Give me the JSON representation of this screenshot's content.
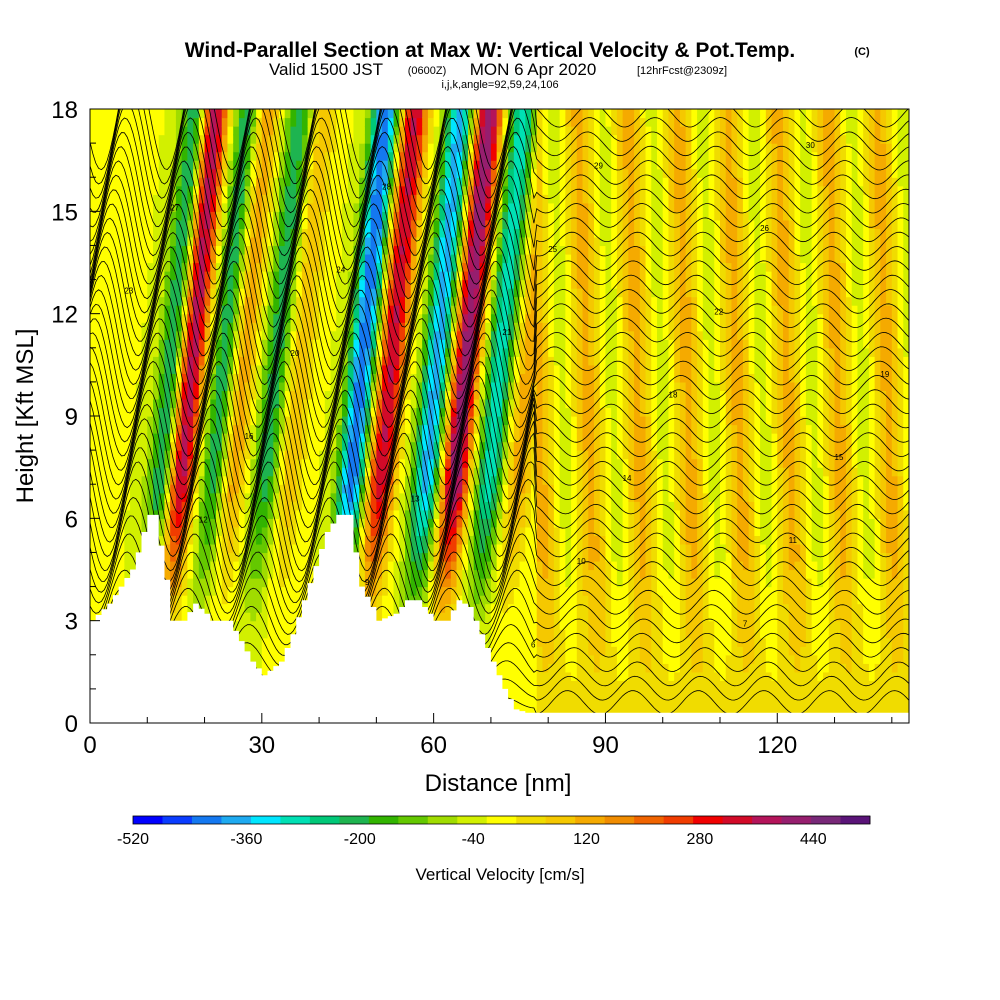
{
  "header": {
    "title": "Wind-Parallel Section at Max W: Vertical Velocity & Pot.Temp.",
    "title_unit": "(C)",
    "valid_prefix": "Valid 1500 JST",
    "valid_utc": "(0600Z)",
    "valid_date": "MON 6 Apr 2020",
    "forecast": "[12hrFcst@2309z]",
    "grid_info": "i,j,k,angle=92,59,24,106"
  },
  "chart_data": {
    "type": "heatmap",
    "xlabel": "Distance [nm]",
    "ylabel": "Height [Kft MSL]",
    "xlim": [
      0,
      143
    ],
    "ylim": [
      0,
      18
    ],
    "x_ticks": [
      "0",
      "30",
      "60",
      "90",
      "120"
    ],
    "x_tick_values": [
      0,
      30,
      60,
      90,
      120
    ],
    "y_ticks": [
      "0",
      "3",
      "6",
      "9",
      "12",
      "15",
      "18"
    ],
    "y_tick_values": [
      0,
      3,
      6,
      9,
      12,
      15,
      18
    ],
    "terrain_top_kft": [
      [
        0,
        3.0
      ],
      [
        3,
        3.5
      ],
      [
        5,
        4.0
      ],
      [
        7,
        4.5
      ],
      [
        8,
        5.0
      ],
      [
        9,
        5.6
      ],
      [
        10,
        6.1
      ],
      [
        11,
        6.1
      ],
      [
        12,
        5.2
      ],
      [
        13,
        4.2
      ],
      [
        14,
        3.0
      ],
      [
        16,
        3.0
      ],
      [
        18,
        3.5
      ],
      [
        20,
        3.2
      ],
      [
        21,
        3.0
      ],
      [
        24,
        3.0
      ],
      [
        26,
        2.4
      ],
      [
        28,
        1.8
      ],
      [
        30,
        1.4
      ],
      [
        33,
        1.8
      ],
      [
        35,
        2.6
      ],
      [
        37,
        3.6
      ],
      [
        39,
        4.6
      ],
      [
        41,
        5.6
      ],
      [
        43,
        6.1
      ],
      [
        45,
        6.1
      ],
      [
        46,
        5.0
      ],
      [
        47,
        4.0
      ],
      [
        49,
        3.4
      ],
      [
        50,
        3.0
      ],
      [
        53,
        3.2
      ],
      [
        55,
        3.6
      ],
      [
        57,
        3.6
      ],
      [
        59,
        3.2
      ],
      [
        60,
        3.0
      ],
      [
        62,
        3.0
      ],
      [
        64,
        3.6
      ],
      [
        66,
        3.4
      ],
      [
        68,
        2.6
      ],
      [
        70,
        1.8
      ],
      [
        72,
        1.0
      ],
      [
        74,
        0.4
      ],
      [
        76,
        0.3
      ],
      [
        143,
        0.3
      ]
    ],
    "colorbar": {
      "label": "Vertical Velocity [cm/s]",
      "tick_labels": [
        "-520",
        "-360",
        "-200",
        "-40",
        "120",
        "280",
        "440"
      ],
      "tick_values": [
        -520,
        -360,
        -200,
        -40,
        120,
        280,
        440
      ],
      "min": -520,
      "max": 520,
      "colors": [
        "#0000ff",
        "#0a3cff",
        "#1478f0",
        "#1eaaf0",
        "#00e6ff",
        "#00e0b4",
        "#00c878",
        "#1eb450",
        "#32b400",
        "#64c800",
        "#a0dc00",
        "#d2f000",
        "#ffff00",
        "#f0dc00",
        "#f5c800",
        "#f5aa00",
        "#f08c00",
        "#f06400",
        "#f03c00",
        "#f00000",
        "#d20a28",
        "#b4145a",
        "#961e6e",
        "#782878",
        "#5a1478"
      ]
    },
    "updraft_bands": [
      {
        "x0": 14,
        "amplitude": 440
      },
      {
        "x0": 23,
        "amplitude": 180
      },
      {
        "x0": 33,
        "amplitude": 120
      },
      {
        "x0": 49,
        "amplitude": 380
      },
      {
        "x0": 62,
        "amplitude": 460
      },
      {
        "x0": 73,
        "amplitude": 160
      }
    ],
    "downdraft_bands": [
      {
        "x0": 11,
        "amplitude": -260
      },
      {
        "x0": 20,
        "amplitude": -220
      },
      {
        "x0": 29,
        "amplitude": -200
      },
      {
        "x0": 44,
        "amplitude": -420
      },
      {
        "x0": 57,
        "amplitude": -360
      },
      {
        "x0": 68,
        "amplitude": -280
      }
    ],
    "isentrope_labels": [
      "4",
      "5",
      "6",
      "7",
      "8",
      "9",
      "10",
      "11",
      "12",
      "13",
      "14",
      "15",
      "16",
      "17",
      "18",
      "19",
      "20",
      "21",
      "22",
      "23",
      "24",
      "25",
      "26",
      "27",
      "28",
      "29",
      "30"
    ]
  }
}
